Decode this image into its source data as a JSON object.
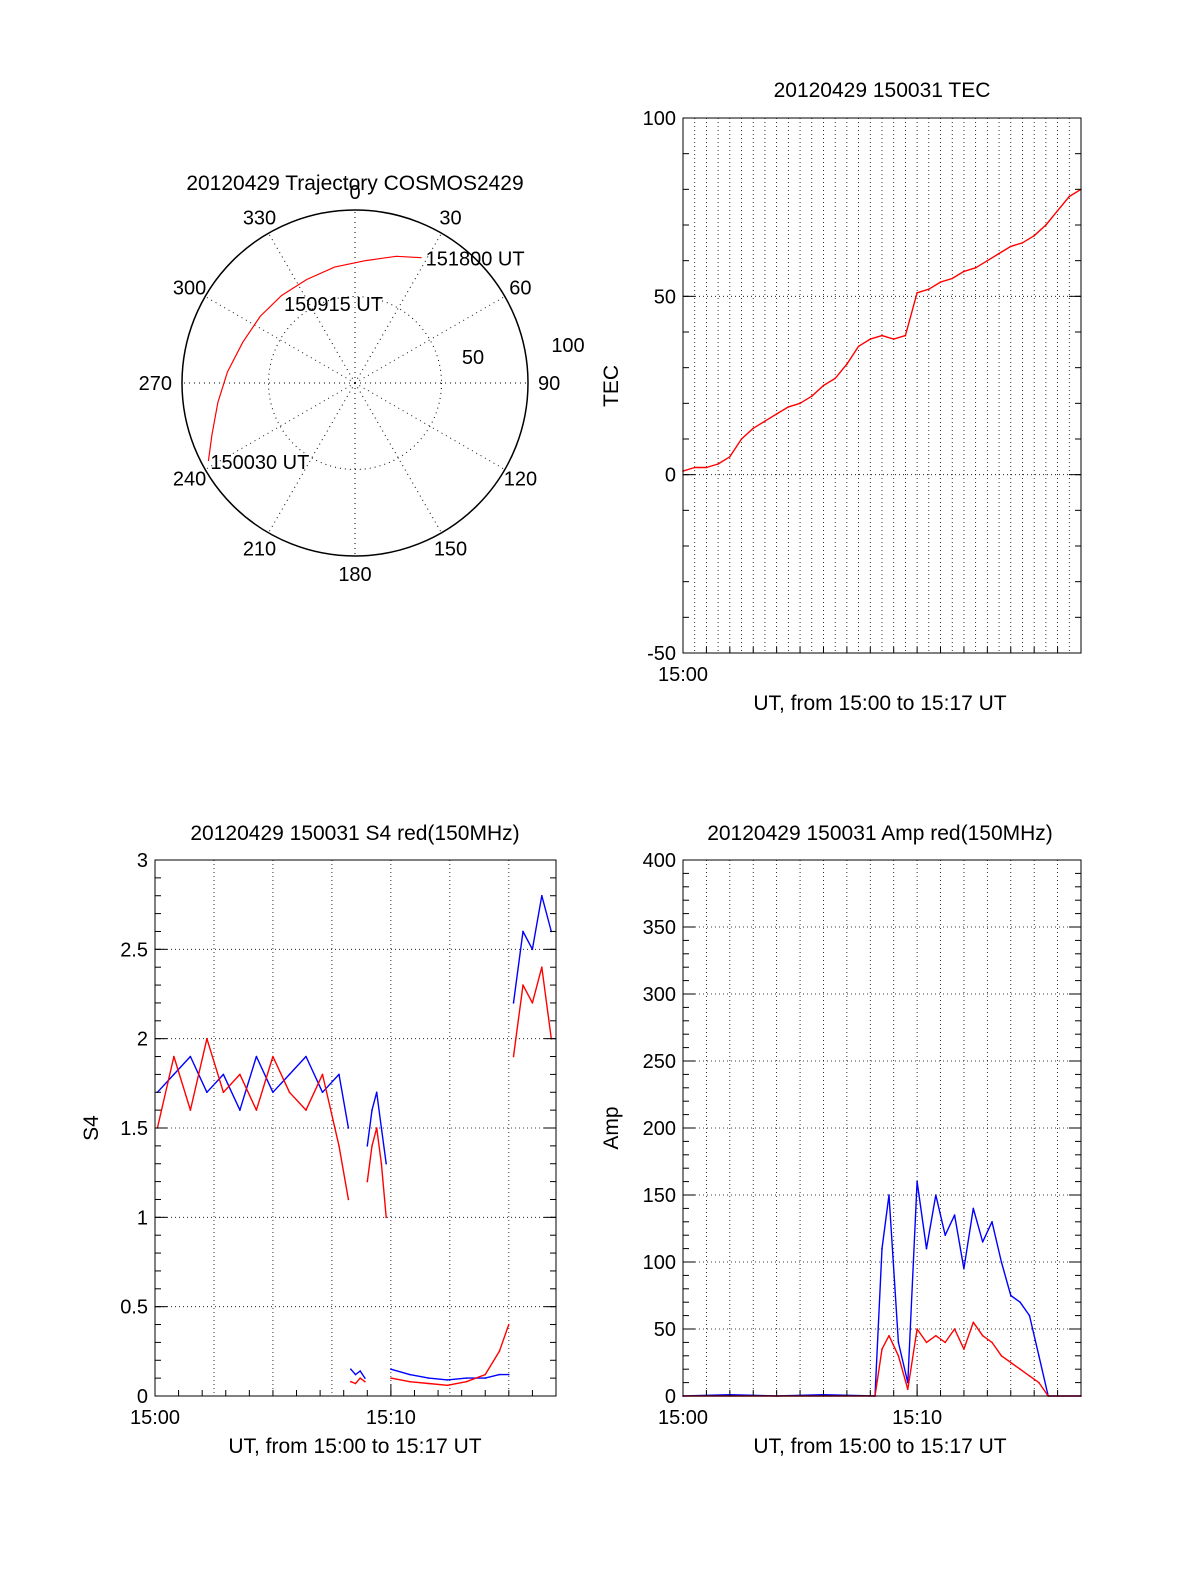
{
  "colors": {
    "red": "#ff0000",
    "blue": "#0000ff",
    "axis": "#000000",
    "grid": "#000000",
    "background": "#ffffff"
  },
  "chart_data": [
    {
      "id": "trajectory",
      "type": "polar",
      "title": "20120429 Trajectory COSMOS2429",
      "azimuth_labels": [
        "0",
        "30",
        "60",
        "90",
        "120",
        "150",
        "180",
        "210",
        "240",
        "270",
        "300",
        "330"
      ],
      "radial_labels": [
        "50",
        "100"
      ],
      "rlim": [
        0,
        100
      ],
      "grid": true,
      "track": {
        "color": "red",
        "points": [
          {
            "az": 242,
            "r": 96
          },
          {
            "az": 250,
            "r": 88
          },
          {
            "az": 262,
            "r": 80
          },
          {
            "az": 275,
            "r": 74
          },
          {
            "az": 290,
            "r": 69
          },
          {
            "az": 305,
            "r": 67
          },
          {
            "az": 320,
            "r": 66
          },
          {
            "az": 335,
            "r": 66
          },
          {
            "az": 350,
            "r": 68
          },
          {
            "az": 5,
            "r": 71
          },
          {
            "az": 18,
            "r": 77
          },
          {
            "az": 28,
            "r": 82
          }
        ]
      },
      "annotations": [
        {
          "text": "151800 UT",
          "az": 28,
          "r": 82
        },
        {
          "text": "150915 UT",
          "az": 345,
          "r": 48
        },
        {
          "text": "150030 UT",
          "az": 242,
          "r": 96
        }
      ]
    },
    {
      "id": "tec",
      "type": "line",
      "title": "20120429 150031 TEC",
      "xlabel": "UT, from 15:00 to 15:17 UT",
      "ylabel": "TEC",
      "xlim": [
        0,
        17
      ],
      "ylim": [
        -50,
        100
      ],
      "yticks": [
        -50,
        0,
        50,
        100
      ],
      "xticks": [
        {
          "value": 0,
          "label": "15:00"
        }
      ],
      "xgrid_every": 0.5,
      "grid": true,
      "series": [
        {
          "color": "red",
          "x": [
            0,
            0.5,
            1,
            1.5,
            2,
            2.5,
            3,
            3.5,
            4,
            4.5,
            5,
            5.5,
            6,
            6.5,
            7,
            7.5,
            8,
            8.5,
            9,
            9.5,
            10,
            10.5,
            11,
            11.5,
            12,
            12.5,
            13,
            13.5,
            14,
            14.5,
            15,
            15.5,
            16,
            16.5,
            17
          ],
          "y": [
            1,
            2,
            2,
            3,
            5,
            10,
            13,
            15,
            17,
            19,
            20,
            22,
            25,
            27,
            31,
            36,
            38,
            39,
            38,
            39,
            51,
            52,
            54,
            55,
            57,
            58,
            60,
            62,
            64,
            65,
            67,
            70,
            74,
            78,
            80
          ]
        }
      ]
    },
    {
      "id": "s4",
      "type": "line",
      "title": "20120429 150031 S4 red(150MHz)",
      "xlabel": "UT, from 15:00 to 15:17 UT",
      "ylabel": "S4",
      "xlim": [
        0,
        17
      ],
      "ylim": [
        0,
        3
      ],
      "yticks": [
        0,
        0.5,
        1,
        1.5,
        2,
        2.5,
        3
      ],
      "ytick_labels": [
        "0",
        "0.5",
        "1",
        "1.5",
        "2",
        "2.5",
        "3"
      ],
      "xticks": [
        {
          "value": 0,
          "label": "15:00"
        },
        {
          "value": 10,
          "label": "15:10"
        }
      ],
      "xgrid_every": 2.5,
      "grid": true,
      "series": [
        {
          "color": "blue",
          "segments": [
            {
              "x": [
                0.1,
                0.8,
                1.5,
                2.2,
                2.9,
                3.6,
                4.3,
                5.0,
                5.7,
                6.4,
                7.1,
                7.8,
                8.2
              ],
              "y": [
                1.7,
                1.8,
                1.9,
                1.7,
                1.8,
                1.6,
                1.9,
                1.7,
                1.8,
                1.9,
                1.7,
                1.8,
                1.5
              ]
            },
            {
              "x": [
                8.3,
                8.5,
                8.7,
                8.9
              ],
              "y": [
                0.15,
                0.12,
                0.14,
                0.1
              ]
            },
            {
              "x": [
                9.0,
                9.2,
                9.4,
                9.6,
                9.8
              ],
              "y": [
                1.4,
                1.6,
                1.7,
                1.5,
                1.3
              ]
            },
            {
              "x": [
                10.0,
                10.8,
                11.6,
                12.4,
                13.2,
                14.0,
                14.6,
                15.0
              ],
              "y": [
                0.15,
                0.12,
                0.1,
                0.09,
                0.1,
                0.1,
                0.12,
                0.12
              ]
            },
            {
              "x": [
                15.2,
                15.6,
                16.0,
                16.4,
                16.8
              ],
              "y": [
                2.2,
                2.6,
                2.5,
                2.8,
                2.6
              ]
            }
          ]
        },
        {
          "color": "red",
          "segments": [
            {
              "x": [
                0.1,
                0.8,
                1.5,
                2.2,
                2.9,
                3.6,
                4.3,
                5.0,
                5.7,
                6.4,
                7.1,
                7.8,
                8.2
              ],
              "y": [
                1.5,
                1.9,
                1.6,
                2.0,
                1.7,
                1.8,
                1.6,
                1.9,
                1.7,
                1.6,
                1.8,
                1.4,
                1.1
              ]
            },
            {
              "x": [
                8.3,
                8.5,
                8.7,
                8.9
              ],
              "y": [
                0.08,
                0.07,
                0.1,
                0.08
              ]
            },
            {
              "x": [
                9.0,
                9.2,
                9.4,
                9.6,
                9.8
              ],
              "y": [
                1.2,
                1.4,
                1.5,
                1.3,
                1.0
              ]
            },
            {
              "x": [
                10.0,
                10.8,
                11.6,
                12.4,
                13.2,
                14.0,
                14.6,
                15.0
              ],
              "y": [
                0.1,
                0.08,
                0.07,
                0.06,
                0.08,
                0.12,
                0.25,
                0.4
              ]
            },
            {
              "x": [
                15.2,
                15.6,
                16.0,
                16.4,
                16.8
              ],
              "y": [
                1.9,
                2.3,
                2.2,
                2.4,
                2.0
              ]
            }
          ]
        }
      ]
    },
    {
      "id": "amp",
      "type": "line",
      "title": "20120429 150031 Amp red(150MHz)",
      "xlabel": "UT, from 15:00 to 15:17 UT",
      "ylabel": "Amp",
      "xlim": [
        0,
        17
      ],
      "ylim": [
        0,
        400
      ],
      "yticks": [
        0,
        50,
        100,
        150,
        200,
        250,
        300,
        350,
        400
      ],
      "xticks": [
        {
          "value": 0,
          "label": "15:00"
        },
        {
          "value": 10,
          "label": "15:10"
        }
      ],
      "xgrid_every": 1,
      "grid": true,
      "series": [
        {
          "color": "blue",
          "x": [
            0,
            2,
            4,
            6,
            8.2,
            8.5,
            8.8,
            9.2,
            9.6,
            10.0,
            10.4,
            10.8,
            11.2,
            11.6,
            12.0,
            12.4,
            12.8,
            13.2,
            13.6,
            14.0,
            14.4,
            14.8,
            15.2,
            15.6,
            16.0,
            17.0
          ],
          "y": [
            0,
            1,
            0,
            1,
            0,
            110,
            150,
            40,
            10,
            160,
            110,
            150,
            120,
            135,
            95,
            140,
            115,
            130,
            100,
            75,
            70,
            60,
            30,
            0,
            0,
            0
          ]
        },
        {
          "color": "red",
          "x": [
            0,
            2,
            4,
            6,
            8.2,
            8.5,
            8.8,
            9.2,
            9.6,
            10.0,
            10.4,
            10.8,
            11.2,
            11.6,
            12.0,
            12.4,
            12.8,
            13.2,
            13.6,
            14.0,
            14.4,
            14.8,
            15.2,
            15.6,
            16.0,
            17.0
          ],
          "y": [
            0,
            0,
            0,
            0,
            0,
            35,
            45,
            30,
            5,
            50,
            40,
            45,
            40,
            50,
            35,
            55,
            45,
            40,
            30,
            25,
            20,
            15,
            10,
            0,
            0,
            0
          ]
        }
      ]
    }
  ]
}
